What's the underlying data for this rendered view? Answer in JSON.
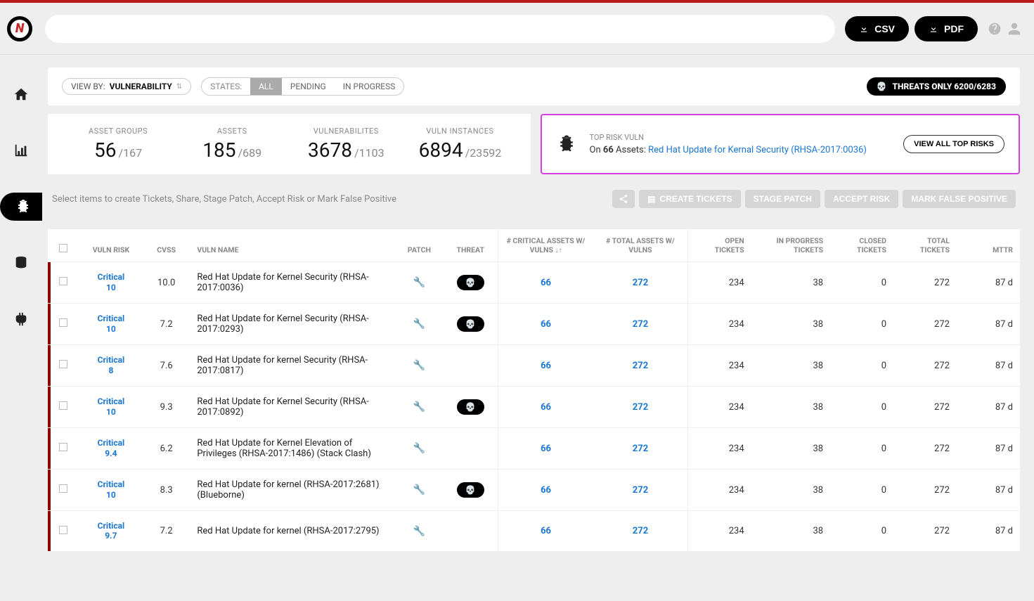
{
  "header": {
    "csv_label": "CSV",
    "pdf_label": "PDF"
  },
  "filters": {
    "viewby_label": "VIEW BY:",
    "viewby_value": "VULNERABILITY",
    "states_label": "STATES:",
    "state_all": "ALL",
    "state_pending": "PENDING",
    "state_inprogress": "IN PROGRESS",
    "threats_only_label": "THREATS ONLY 6200/6283"
  },
  "stats": {
    "asset_groups_label": "ASSET GROUPS",
    "asset_groups_val": "56",
    "asset_groups_total": "/167",
    "assets_label": "ASSETS",
    "assets_val": "185",
    "assets_total": "/689",
    "vulns_label": "VULNERABILITES",
    "vulns_val": "3678",
    "vulns_total": "/1103",
    "instances_label": "VULN INSTANCES",
    "instances_val": "6894",
    "instances_total": "/23592"
  },
  "top_risk": {
    "label": "TOP RISK VULN",
    "on": "On ",
    "count": "66",
    "assets_suffix": " Assets:  ",
    "link": "Red Hat Update for Kernal Security (RHSA-2017:0036)",
    "btn": "VIEW ALL TOP RISKS"
  },
  "actions": {
    "hint": "Select items to create Tickets, Share, Stage Patch, Accept Risk or Mark False Positive",
    "create": "CREATE TICKETS",
    "stage": "STAGE PATCH",
    "accept": "ACCEPT RISK",
    "markfp": "MARK FALSE POSITIVE"
  },
  "columns": {
    "vuln_risk": "VULN RISK",
    "cvss": "CVSS",
    "vuln_name": "VULN NAME",
    "patch": "PATCH",
    "threat": "THREAT",
    "crit_assets": "# CRITICAL ASSETS W/ VULNS ",
    "total_assets": "# TOTAL ASSETS W/ VULNS",
    "open": "OPEN TICKETS",
    "inprog": "IN PROGRESS TICKETS",
    "closed": "CLOSED TICKETS",
    "total": "TOTAL TICKETS",
    "mttr": "MTTR"
  },
  "rows": [
    {
      "risk_label": "Critical",
      "risk_num": "10",
      "cvss": "10.0",
      "name": "Red Hat Update for Kernel Security (RHSA-2017:0036)",
      "threat": true,
      "crit": "66",
      "tot": "272",
      "open": "234",
      "inprog": "38",
      "closed": "0",
      "total": "272",
      "mttr": "87 d"
    },
    {
      "risk_label": "Critical",
      "risk_num": "10",
      "cvss": "7.2",
      "name": "Red Hat Update for Kernel Security (RHSA-2017:0293)",
      "threat": true,
      "crit": "66",
      "tot": "272",
      "open": "234",
      "inprog": "38",
      "closed": "0",
      "total": "272",
      "mttr": "87 d"
    },
    {
      "risk_label": "Critical",
      "risk_num": "8",
      "cvss": "7.6",
      "name": "Red Hat Update for kernel Security (RHSA-2017:0817)",
      "threat": false,
      "crit": "66",
      "tot": "272",
      "open": "234",
      "inprog": "38",
      "closed": "0",
      "total": "272",
      "mttr": "87 d"
    },
    {
      "risk_label": "Critical",
      "risk_num": "10",
      "cvss": "9.3",
      "name": "Red Hat Update for Kernel Security (RHSA-2017:0892)",
      "threat": true,
      "crit": "66",
      "tot": "272",
      "open": "234",
      "inprog": "38",
      "closed": "0",
      "total": "272",
      "mttr": "87 d"
    },
    {
      "risk_label": "Critical",
      "risk_num": "9.4",
      "cvss": "6.2",
      "name": "Red Hat Update for Kernel Elevation of Privileges (RHSA-2017:1486) (Stack Clash)",
      "threat": false,
      "crit": "66",
      "tot": "272",
      "open": "234",
      "inprog": "38",
      "closed": "0",
      "total": "272",
      "mttr": "87 d"
    },
    {
      "risk_label": "Critical",
      "risk_num": "10",
      "cvss": "8.3",
      "name": "Red Hat Update for kernel (RHSA-2017:2681) (Blueborne)",
      "threat": true,
      "crit": "66",
      "tot": "272",
      "open": "234",
      "inprog": "38",
      "closed": "0",
      "total": "272",
      "mttr": "87 d"
    },
    {
      "risk_label": "Critical",
      "risk_num": "9.7",
      "cvss": "7.2",
      "name": "Red Hat Update for kernel (RHSA-2017:2795)",
      "threat": false,
      "crit": "66",
      "tot": "272",
      "open": "234",
      "inprog": "38",
      "closed": "0",
      "total": "272",
      "mttr": "87 d"
    }
  ]
}
